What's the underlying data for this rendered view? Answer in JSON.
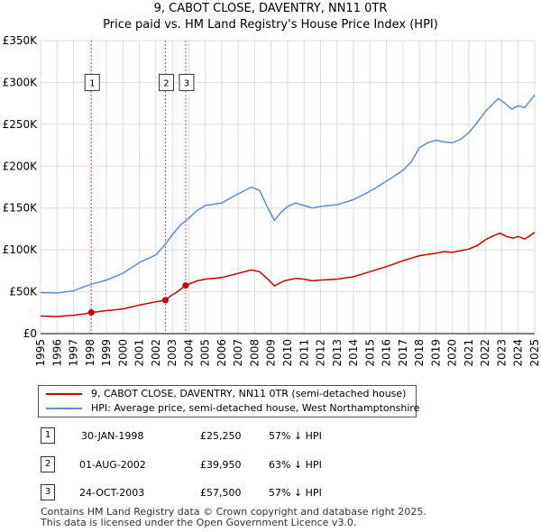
{
  "colors": {
    "price_paid": "#cc0000",
    "hpi": "#5b8fd6",
    "grid": "#dddddd",
    "vline": "#cc0000"
  },
  "title_line1": "9, CABOT CLOSE, DAVENTRY, NN11 0TR",
  "title_line2": "Price paid vs. HM Land Registry's House Price Index (HPI)",
  "chart_data": {
    "type": "line",
    "title": "9, CABOT CLOSE, DAVENTRY, NN11 0TR — Price paid vs. HM Land Registry's House Price Index (HPI)",
    "xlabel": "",
    "ylabel": "",
    "xlim": [
      1995,
      2025
    ],
    "ylim": [
      0,
      350000
    ],
    "x_ticks": [
      "1995",
      "1996",
      "1997",
      "1998",
      "1999",
      "2000",
      "2001",
      "2002",
      "2003",
      "2004",
      "2005",
      "2006",
      "2007",
      "2008",
      "2009",
      "2010",
      "2011",
      "2012",
      "2013",
      "2014",
      "2015",
      "2016",
      "2017",
      "2018",
      "2019",
      "2020",
      "2021",
      "2022",
      "2023",
      "2024",
      "2025"
    ],
    "y_ticks": [
      {
        "value": 0,
        "label": "£0"
      },
      {
        "value": 50000,
        "label": "£50K"
      },
      {
        "value": 100000,
        "label": "£100K"
      },
      {
        "value": 150000,
        "label": "£150K"
      },
      {
        "value": 200000,
        "label": "£200K"
      },
      {
        "value": 250000,
        "label": "£250K"
      },
      {
        "value": 300000,
        "label": "£300K"
      },
      {
        "value": 350000,
        "label": "£350K"
      }
    ],
    "grid": true,
    "series": [
      {
        "name": "9, CABOT CLOSE, DAVENTRY, NN11 0TR (semi-detached house)",
        "color": "#cc0000",
        "points": [
          [
            1995.0,
            21000
          ],
          [
            1996.0,
            20500
          ],
          [
            1997.0,
            22000
          ],
          [
            1997.6,
            23500
          ],
          [
            1998.08,
            25250
          ],
          [
            1999.0,
            27500
          ],
          [
            2000.0,
            29500
          ],
          [
            2001.0,
            34000
          ],
          [
            2002.0,
            38000
          ],
          [
            2002.58,
            39950
          ],
          [
            2002.9,
            45000
          ],
          [
            2003.3,
            50000
          ],
          [
            2003.81,
            57500
          ],
          [
            2004.5,
            63000
          ],
          [
            2005.0,
            65000
          ],
          [
            2006.0,
            67000
          ],
          [
            2007.0,
            72000
          ],
          [
            2007.8,
            76000
          ],
          [
            2008.3,
            74000
          ],
          [
            2008.8,
            65000
          ],
          [
            2009.2,
            57000
          ],
          [
            2009.8,
            63000
          ],
          [
            2010.5,
            66000
          ],
          [
            2011.0,
            65000
          ],
          [
            2011.5,
            63000
          ],
          [
            2012.0,
            64000
          ],
          [
            2013.0,
            65000
          ],
          [
            2014.0,
            68000
          ],
          [
            2015.0,
            74000
          ],
          [
            2016.0,
            80000
          ],
          [
            2017.0,
            87000
          ],
          [
            2018.0,
            93000
          ],
          [
            2019.0,
            96000
          ],
          [
            2019.5,
            98000
          ],
          [
            2020.0,
            97000
          ],
          [
            2021.0,
            101000
          ],
          [
            2021.5,
            105000
          ],
          [
            2022.0,
            112000
          ],
          [
            2022.5,
            117000
          ],
          [
            2022.9,
            120000
          ],
          [
            2023.3,
            116000
          ],
          [
            2023.7,
            114000
          ],
          [
            2024.0,
            116000
          ],
          [
            2024.4,
            113000
          ],
          [
            2024.8,
            118000
          ],
          [
            2025.0,
            121000
          ]
        ]
      },
      {
        "name": "HPI: Average price, semi-detached house, West Northamptonshire",
        "color": "#5b8fd6",
        "points": [
          [
            1995.0,
            49000
          ],
          [
            1996.0,
            48500
          ],
          [
            1997.0,
            51000
          ],
          [
            1997.5,
            55000
          ],
          [
            1998.0,
            58500
          ],
          [
            1999.0,
            64000
          ],
          [
            2000.0,
            72000
          ],
          [
            2001.0,
            85000
          ],
          [
            2002.0,
            94000
          ],
          [
            2002.5,
            105000
          ],
          [
            2003.0,
            118000
          ],
          [
            2003.5,
            130000
          ],
          [
            2004.0,
            138000
          ],
          [
            2004.5,
            147000
          ],
          [
            2005.0,
            153000
          ],
          [
            2006.0,
            156000
          ],
          [
            2007.0,
            167000
          ],
          [
            2007.8,
            175000
          ],
          [
            2008.3,
            171000
          ],
          [
            2008.8,
            150000
          ],
          [
            2009.2,
            135000
          ],
          [
            2009.6,
            145000
          ],
          [
            2010.0,
            152000
          ],
          [
            2010.5,
            156000
          ],
          [
            2011.0,
            153000
          ],
          [
            2011.5,
            150000
          ],
          [
            2012.0,
            152000
          ],
          [
            2013.0,
            154000
          ],
          [
            2014.0,
            160000
          ],
          [
            2015.0,
            170000
          ],
          [
            2016.0,
            182000
          ],
          [
            2017.0,
            195000
          ],
          [
            2017.5,
            205000
          ],
          [
            2018.0,
            222000
          ],
          [
            2018.5,
            228000
          ],
          [
            2019.0,
            231000
          ],
          [
            2019.5,
            229000
          ],
          [
            2020.0,
            228000
          ],
          [
            2020.5,
            232000
          ],
          [
            2021.0,
            240000
          ],
          [
            2021.5,
            252000
          ],
          [
            2022.0,
            265000
          ],
          [
            2022.5,
            275000
          ],
          [
            2022.8,
            281000
          ],
          [
            2023.2,
            275000
          ],
          [
            2023.6,
            268000
          ],
          [
            2024.0,
            272000
          ],
          [
            2024.4,
            270000
          ],
          [
            2024.8,
            280000
          ],
          [
            2025.0,
            285000
          ]
        ]
      }
    ],
    "sales": [
      {
        "num": "1",
        "date": "30-JAN-1998",
        "x": 1998.08,
        "price_value": 25250,
        "price": "£25,250",
        "hpi_text": "57% ↓ HPI"
      },
      {
        "num": "2",
        "date": "01-AUG-2002",
        "x": 2002.58,
        "price_value": 39950,
        "price": "£39,950",
        "hpi_text": "63% ↓ HPI"
      },
      {
        "num": "3",
        "date": "24-OCT-2003",
        "x": 2003.81,
        "price_value": 57500,
        "price": "£57,500",
        "hpi_text": "57% ↓ HPI"
      }
    ],
    "marker_label_value": 300000
  },
  "legend": {
    "price_paid_label": "9, CABOT CLOSE, DAVENTRY, NN11 0TR (semi-detached house)",
    "hpi_label": "HPI: Average price, semi-detached house, West Northamptonshire"
  },
  "footer_line1": "Contains HM Land Registry data © Crown copyright and database right 2025.",
  "footer_line2": "This data is licensed under the Open Government Licence v3.0."
}
